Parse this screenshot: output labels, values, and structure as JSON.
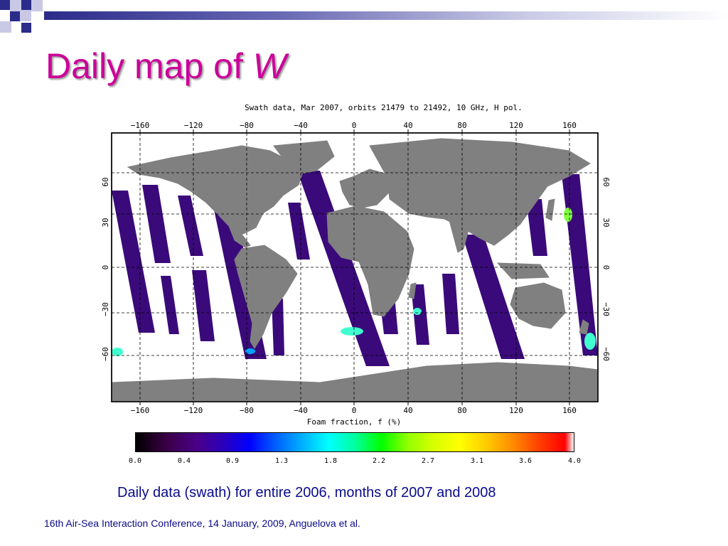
{
  "slide": {
    "title_main": "Daily map of ",
    "title_italic": "W",
    "map_subtitle": "Swath data, Mar 2007, orbits 21479 to 21492, 10 GHz, H pol.",
    "caption": "Daily data (swath) for entire 2006, months of 2007 and 2008",
    "footer": "16th Air-Sea Interaction Conference, 14 January, 2009, Anguelova et al."
  },
  "map": {
    "x_ticks": [
      {
        "label": "−160"
      },
      {
        "label": "−120"
      },
      {
        "label": "−80"
      },
      {
        "label": "−40"
      },
      {
        "label": "0"
      },
      {
        "label": "40"
      },
      {
        "label": "80"
      },
      {
        "label": "120"
      },
      {
        "label": "160"
      }
    ],
    "y_ticks": [
      {
        "label": "60"
      },
      {
        "label": "30"
      },
      {
        "label": "0"
      },
      {
        "label": "−30"
      },
      {
        "label": "−60"
      }
    ],
    "x_axis_label": "Foam fraction, f (%)",
    "land_color": "#808080",
    "swath_color": "#3a0a7a",
    "ocean_color": "#ffffff"
  },
  "colorbar": {
    "labels": [
      "0.0",
      "0.4",
      "0.9",
      "1.3",
      "1.8",
      "2.2",
      "2.7",
      "3.1",
      "3.6",
      "4.0"
    ],
    "min": 0.0,
    "max": 4.0
  }
}
